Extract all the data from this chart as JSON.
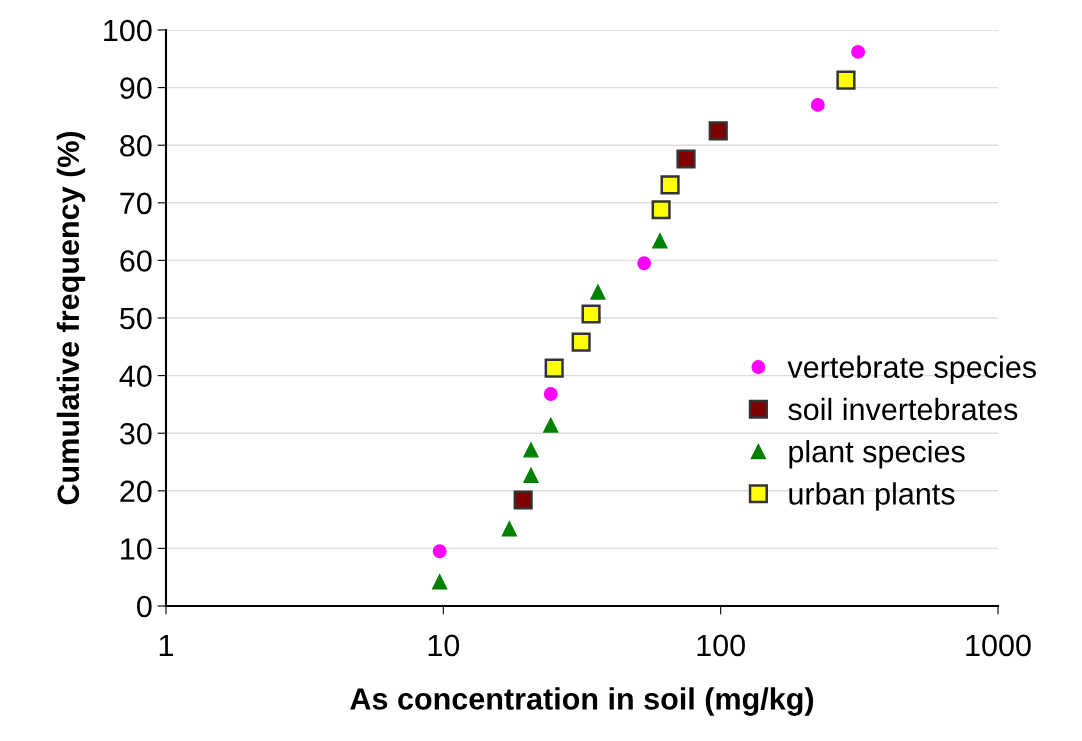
{
  "chart_data": {
    "type": "scatter",
    "xlabel": "As concentration in soil (mg/kg)",
    "ylabel": "Cumulative frequency (%)",
    "log": "x",
    "xlim": [
      1,
      1000
    ],
    "xticks": [
      1,
      10,
      100,
      1000
    ],
    "ylim": [
      0,
      100
    ],
    "yticks": [
      0,
      10,
      20,
      30,
      40,
      50,
      60,
      70,
      80,
      90,
      100
    ],
    "grid": "y",
    "legend": "right",
    "series": [
      {
        "name": "vertebrate species",
        "color": "#ff00ff",
        "marker": "circle",
        "x": [
          9.7,
          24.4,
          53,
          224,
          313
        ],
        "values": [
          9.5,
          36.8,
          59.5,
          87,
          96.2
        ]
      },
      {
        "name": "soil invertebrates",
        "color": "#800000",
        "marker": "square",
        "x": [
          19.4,
          75,
          98
        ],
        "values": [
          18.4,
          77.6,
          82.5
        ]
      },
      {
        "name": "plant species",
        "color": "#008000",
        "marker": "triangle",
        "x": [
          9.7,
          17.3,
          20.7,
          20.7,
          24.4,
          36.1,
          60.4
        ],
        "values": [
          4.2,
          13.4,
          22.7,
          27.1,
          31.4,
          54.5,
          63.4
        ]
      },
      {
        "name": "urban plants",
        "color": "#ffff00",
        "marker": "square",
        "x": [
          25.1,
          31.4,
          34.1,
          61,
          65.7,
          283
        ],
        "values": [
          41.3,
          45.8,
          50.7,
          68.8,
          73.1,
          91.3
        ]
      }
    ]
  }
}
